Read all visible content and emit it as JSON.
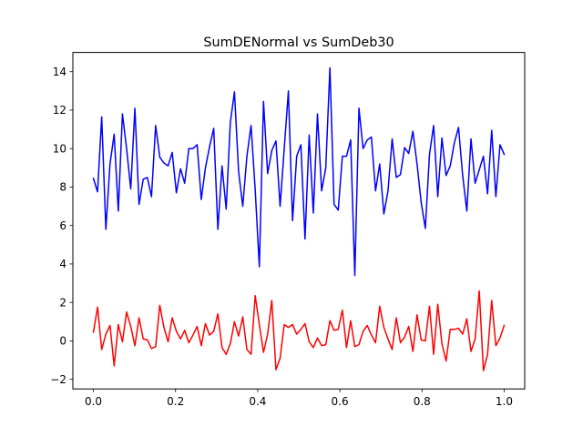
{
  "chart_data": {
    "type": "line",
    "title": "SumDENormal vs SumDeb30",
    "xlabel": "",
    "ylabel": "",
    "xlim": [
      -0.05,
      1.05
    ],
    "ylim": [
      -2.5,
      15.0
    ],
    "x_ticks": [
      0.0,
      0.2,
      0.4,
      0.6,
      0.8,
      1.0
    ],
    "x_tick_labels": [
      "0.0",
      "0.2",
      "0.4",
      "0.6",
      "0.8",
      "1.0"
    ],
    "y_ticks": [
      -2,
      0,
      2,
      4,
      6,
      8,
      10,
      12,
      14
    ],
    "y_tick_labels": [
      "−2",
      "0",
      "2",
      "4",
      "6",
      "8",
      "10",
      "12",
      "14"
    ],
    "grid": false,
    "legend": "none",
    "x": [
      0.0,
      0.0101,
      0.0202,
      0.0303,
      0.0404,
      0.0505,
      0.0606,
      0.0707,
      0.0808,
      0.0909,
      0.101,
      0.1111,
      0.1212,
      0.1313,
      0.1414,
      0.1515,
      0.1616,
      0.1717,
      0.1818,
      0.1919,
      0.202,
      0.2121,
      0.2222,
      0.2323,
      0.2424,
      0.2525,
      0.2626,
      0.2727,
      0.2828,
      0.2929,
      0.303,
      0.3131,
      0.3232,
      0.3333,
      0.3434,
      0.3535,
      0.3636,
      0.3737,
      0.3838,
      0.3939,
      0.404,
      0.4141,
      0.4242,
      0.4343,
      0.4444,
      0.4545,
      0.4646,
      0.4747,
      0.4848,
      0.4949,
      0.5051,
      0.5152,
      0.5253,
      0.5354,
      0.5455,
      0.5556,
      0.5657,
      0.5758,
      0.5859,
      0.596,
      0.6061,
      0.6162,
      0.6263,
      0.6364,
      0.6465,
      0.6566,
      0.6667,
      0.6768,
      0.6869,
      0.697,
      0.7071,
      0.7172,
      0.7273,
      0.7374,
      0.7475,
      0.7576,
      0.7677,
      0.7778,
      0.7879,
      0.798,
      0.8081,
      0.8182,
      0.8283,
      0.8384,
      0.8485,
      0.8586,
      0.8687,
      0.8788,
      0.8889,
      0.899,
      0.9091,
      0.9192,
      0.9293,
      0.9394,
      0.9495,
      0.9596,
      0.9697,
      0.9798,
      0.9899,
      1.0
    ],
    "series": [
      {
        "color": "#0000ff",
        "values": [
          8.45,
          7.75,
          11.65,
          5.8,
          9.2,
          10.75,
          6.75,
          11.8,
          10.0,
          7.9,
          12.1,
          7.1,
          8.4,
          8.5,
          7.5,
          11.2,
          9.55,
          9.25,
          9.1,
          9.8,
          7.7,
          8.95,
          8.2,
          10.0,
          10.0,
          10.2,
          7.35,
          9.0,
          10.1,
          11.05,
          5.8,
          9.1,
          6.85,
          11.35,
          12.95,
          8.8,
          7.0,
          9.6,
          11.2,
          7.85,
          3.85,
          12.45,
          8.7,
          9.9,
          10.4,
          7.0,
          10.0,
          13.0,
          6.25,
          9.6,
          10.2,
          5.3,
          10.7,
          6.65,
          11.8,
          7.8,
          9.0,
          14.2,
          7.1,
          6.8,
          9.6,
          9.6,
          10.45,
          3.4,
          12.1,
          10.0,
          10.45,
          10.6,
          7.8,
          9.2,
          6.6,
          7.8,
          10.5,
          8.5,
          8.65,
          10.05,
          9.75,
          10.9,
          9.2,
          7.2,
          5.85,
          9.7,
          11.2,
          7.5,
          10.55,
          8.6,
          9.1,
          10.3,
          11.1,
          8.6,
          6.75,
          10.5,
          8.2,
          8.9,
          9.6,
          7.65,
          10.95,
          7.5,
          10.2,
          9.7
        ]
      },
      {
        "color": "#ff0000",
        "values": [
          0.45,
          1.75,
          -0.45,
          0.35,
          0.8,
          -1.3,
          0.85,
          -0.05,
          1.5,
          0.75,
          -0.25,
          1.2,
          0.1,
          0.05,
          -0.4,
          -0.3,
          1.85,
          0.7,
          -0.05,
          1.2,
          0.5,
          0.1,
          0.55,
          -0.1,
          0.3,
          0.75,
          -0.25,
          0.9,
          0.3,
          0.5,
          1.4,
          -0.35,
          -0.7,
          -0.15,
          1.0,
          0.25,
          1.25,
          -0.45,
          -0.7,
          2.35,
          0.85,
          -0.6,
          0.35,
          2.1,
          -1.5,
          -0.9,
          0.85,
          0.7,
          0.85,
          0.35,
          0.6,
          0.9,
          -0.05,
          -0.35,
          0.15,
          -0.25,
          -0.2,
          1.05,
          0.55,
          0.6,
          1.6,
          -0.35,
          1.05,
          -0.3,
          -0.2,
          0.5,
          0.8,
          0.3,
          -0.1,
          1.8,
          0.7,
          0.1,
          -0.45,
          1.2,
          -0.1,
          0.2,
          0.75,
          -0.55,
          1.35,
          0.05,
          0.0,
          1.8,
          -0.7,
          1.9,
          -0.15,
          -1.05,
          0.6,
          0.6,
          0.65,
          0.35,
          1.15,
          -0.55,
          0.1,
          2.6,
          -1.55,
          -0.7,
          2.1,
          -0.25,
          0.15,
          0.8
        ]
      }
    ]
  }
}
